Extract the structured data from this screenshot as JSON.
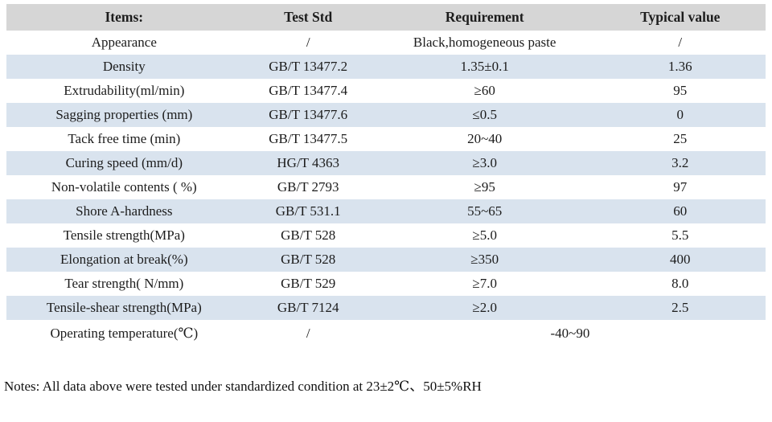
{
  "table": {
    "columns": [
      "Items:",
      "Test Std",
      "Requirement",
      "Typical value"
    ],
    "rows": [
      {
        "item": "Appearance",
        "std": "/",
        "req": "Black,homogeneous paste",
        "typical": "/"
      },
      {
        "item": "Density",
        "std": "GB/T 13477.2",
        "req": "1.35±0.1",
        "typical": "1.36"
      },
      {
        "item": "Extrudability(ml/min)",
        "std": "GB/T 13477.4",
        "req": "≥60",
        "typical": "95"
      },
      {
        "item": "Sagging properties (mm)",
        "std": "GB/T 13477.6",
        "req": "≤0.5",
        "typical": "0"
      },
      {
        "item": "Tack free time (min)",
        "std": "GB/T 13477.5",
        "req": "20~40",
        "typical": "25"
      },
      {
        "item": "Curing speed (mm/d)",
        "std": "HG/T 4363",
        "req": "≥3.0",
        "typical": "3.2"
      },
      {
        "item": "Non-volatile contents ( %)",
        "std": "GB/T 2793",
        "req": "≥95",
        "typical": "97"
      },
      {
        "item": "Shore A-hardness",
        "std": "GB/T 531.1",
        "req": "55~65",
        "typical": "60"
      },
      {
        "item": "Tensile strength(MPa)",
        "std": "GB/T 528",
        "req": "≥5.0",
        "typical": "5.5"
      },
      {
        "item": "Elongation at break(%)",
        "std": "GB/T 528",
        "req": "≥350",
        "typical": "400"
      },
      {
        "item": "Tear strength( N/mm)",
        "std": "GB/T 529",
        "req": "≥7.0",
        "typical": "8.0"
      },
      {
        "item": "Tensile-shear strength(MPa)",
        "std": "GB/T 7124",
        "req": "≥2.0",
        "typical": "2.5"
      },
      {
        "item": "Operating temperature(℃)",
        "std": "/",
        "req": "-40~90",
        "typical": ""
      }
    ]
  },
  "notes": "Notes: All data above were tested under standardized condition at 23±2℃、50±5%RH",
  "colors": {
    "header_bg": "#d6d6d6",
    "stripe_bg": "#d9e3ee",
    "text": "#1c1c1c"
  }
}
